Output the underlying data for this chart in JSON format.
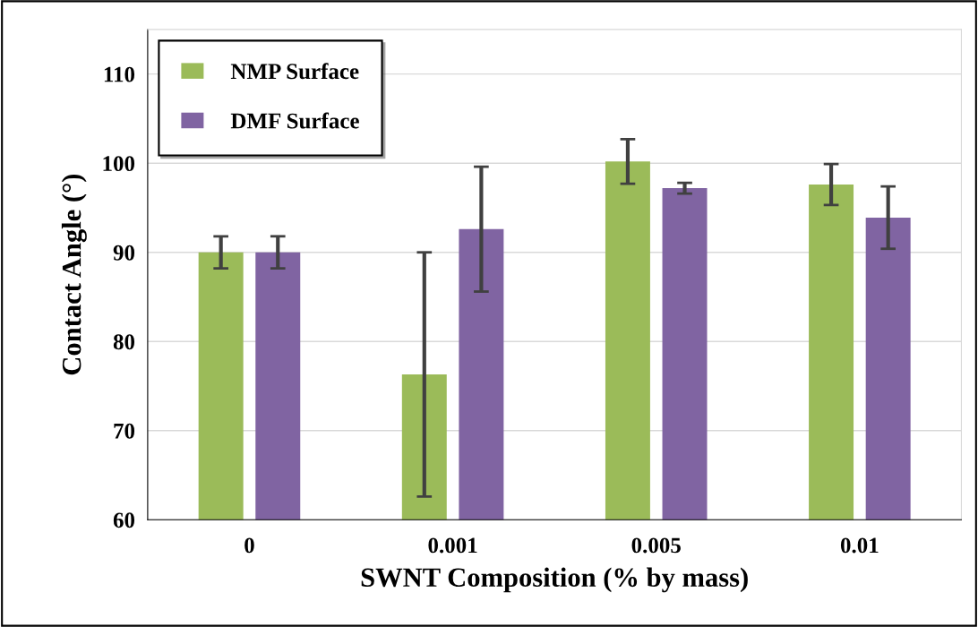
{
  "chart_data": {
    "type": "bar",
    "xlabel": "SWNT Composition (% by mass)",
    "ylabel": "Contact Angle (°)",
    "categories": [
      "0",
      "0.001",
      "0.005",
      "0.01"
    ],
    "series": [
      {
        "name": "NMP Surface",
        "color": "#9bbb59",
        "values": [
          90,
          76.3,
          100.2,
          97.6
        ],
        "errors": [
          1.8,
          13.7,
          2.5,
          2.3
        ]
      },
      {
        "name": "DMF Surface",
        "color": "#8064a2",
        "values": [
          90,
          92.6,
          97.2,
          93.9
        ],
        "errors": [
          1.8,
          7,
          0.6,
          3.5
        ]
      }
    ],
    "ylim": [
      60,
      115
    ],
    "yticks": [
      60,
      70,
      80,
      90,
      100,
      110
    ],
    "grid": "y",
    "legend": "top left"
  }
}
